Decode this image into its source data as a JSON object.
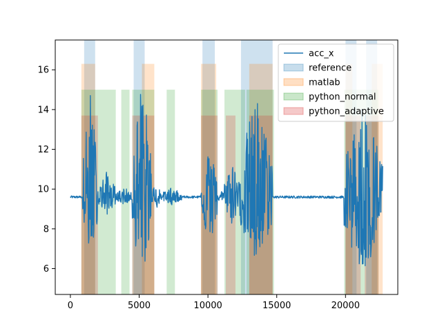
{
  "chart_data": {
    "type": "line",
    "xlim": [
      -1100,
      23800
    ],
    "ylim": [
      4.7,
      17.5
    ],
    "xticks": [
      0,
      5000,
      10000,
      15000,
      20000
    ],
    "xtick_labels": [
      "0",
      "5000",
      "10000",
      "15000",
      "20000"
    ],
    "yticks": [
      6,
      8,
      10,
      12,
      14,
      16
    ],
    "ytick_labels": [
      "6",
      "8",
      "10",
      "12",
      "14",
      "16"
    ],
    "legend_position": "top-right",
    "line": {
      "name": "acc_x",
      "color": "#1f77b4",
      "baseline": 9.6,
      "x_start": 0,
      "x_end": 22700,
      "segments": [
        {
          "x": [
            0,
            900
          ],
          "level": "quiet"
        },
        {
          "x": [
            900,
            2000
          ],
          "level": "burst",
          "min": 6.5,
          "max": 14.9
        },
        {
          "x": [
            2000,
            3300
          ],
          "level": "medium",
          "min": 8.7,
          "max": 10.9
        },
        {
          "x": [
            3300,
            4500
          ],
          "level": "low",
          "min": 9.2,
          "max": 10.1
        },
        {
          "x": [
            4500,
            5900
          ],
          "level": "burst",
          "min": 5.3,
          "max": 15.7
        },
        {
          "x": [
            5900,
            6600
          ],
          "level": "medium",
          "min": 9.0,
          "max": 10.4
        },
        {
          "x": [
            6600,
            8100
          ],
          "level": "low",
          "min": 9.2,
          "max": 10.1
        },
        {
          "x": [
            8100,
            9500
          ],
          "level": "quiet"
        },
        {
          "x": [
            9500,
            10700
          ],
          "level": "burst",
          "min": 7.1,
          "max": 12.2
        },
        {
          "x": [
            10700,
            11200
          ],
          "level": "low",
          "min": 9.3,
          "max": 10.0
        },
        {
          "x": [
            11200,
            12300
          ],
          "level": "medium",
          "min": 8.2,
          "max": 11.6
        },
        {
          "x": [
            12300,
            14700
          ],
          "level": "burst",
          "min": 6.0,
          "max": 14.8
        },
        {
          "x": [
            14700,
            19900
          ],
          "level": "quiet"
        },
        {
          "x": [
            19900,
            22700
          ],
          "level": "burst",
          "min": 5.3,
          "max": 14.6
        }
      ]
    },
    "span_series": [
      {
        "name": "reference",
        "color": "#1f77b4",
        "alpha": 0.22,
        "ymin": 4.7,
        "ymax": 17.5,
        "intervals": [
          [
            1000,
            1800
          ],
          [
            4600,
            5400
          ],
          [
            9600,
            10500
          ],
          [
            12400,
            14700
          ],
          [
            20000,
            20800
          ],
          [
            21500,
            22300
          ]
        ]
      },
      {
        "name": "matlab",
        "color": "#ff7f0e",
        "alpha": 0.22,
        "ymin": 4.7,
        "ymax": 16.3,
        "intervals": [
          [
            800,
            1800
          ],
          [
            5200,
            6100
          ],
          [
            9500,
            10600
          ],
          [
            13000,
            14700
          ],
          [
            20000,
            20500
          ],
          [
            21900,
            22700
          ]
        ]
      },
      {
        "name": "python_normal",
        "color": "#2ca02c",
        "alpha": 0.22,
        "ymin": 4.7,
        "ymax": 15.0,
        "intervals": [
          [
            800,
            3300
          ],
          [
            3700,
            4300
          ],
          [
            4500,
            6100
          ],
          [
            7000,
            7600
          ],
          [
            9500,
            10700
          ],
          [
            11200,
            12700
          ],
          [
            12800,
            14800
          ],
          [
            19900,
            22400
          ]
        ]
      },
      {
        "name": "python_adaptive",
        "color": "#d62728",
        "alpha": 0.22,
        "ymin": 4.7,
        "ymax": 13.7,
        "intervals": [
          [
            800,
            2000
          ],
          [
            4500,
            6100
          ],
          [
            9500,
            10700
          ],
          [
            11300,
            12000
          ],
          [
            13000,
            14700
          ],
          [
            20000,
            21100
          ],
          [
            21400,
            22400
          ]
        ]
      }
    ],
    "legend": [
      "acc_x",
      "reference",
      "matlab",
      "python_normal",
      "python_adaptive"
    ]
  }
}
